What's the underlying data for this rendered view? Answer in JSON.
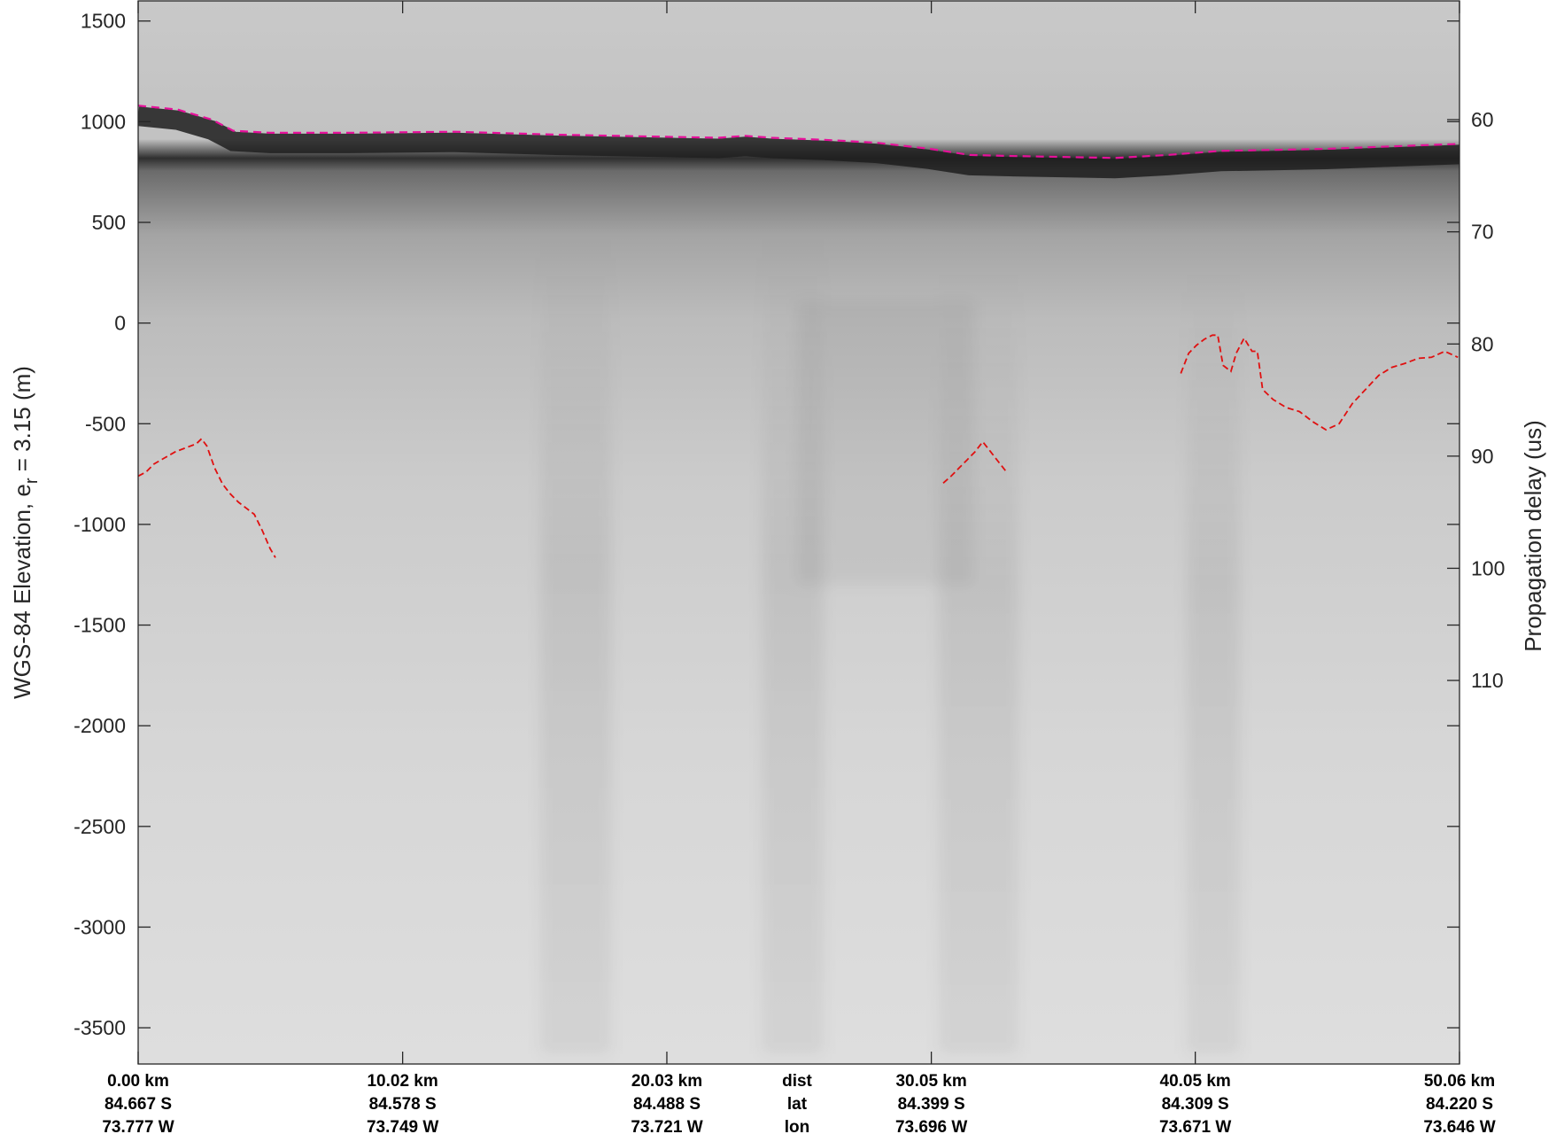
{
  "chart_data": {
    "type": "radar-echogram",
    "ylabel_left": "WGS-84 Elevation, e",
    "ylabel_left_subscript": "r",
    "ylabel_left_suffix": " = 3.15 (m)",
    "ylabel_right": "Propagation delay (us)",
    "ylim_left": [
      -3680,
      1600
    ],
    "left_ticks": [
      1500,
      1000,
      500,
      0,
      -500,
      -1000,
      -1500,
      -2000,
      -2500,
      -3000,
      -3500
    ],
    "right_ticks": [
      60,
      70,
      80,
      90,
      100,
      110
    ],
    "right_axis_map": {
      "ref_delay_us": 60,
      "ref_elevation_m": 1010,
      "m_per_us": -55.7
    },
    "xlim_km": [
      0,
      50.06
    ],
    "colors": {
      "surface_layer": "#e6109a",
      "bed_layer": "#e01010",
      "frame": "#262626"
    },
    "bottom_rows": [
      {
        "key": "dist",
        "label": "dist",
        "values": [
          "0.00 km",
          "10.02 km",
          "20.03 km",
          "30.05 km",
          "40.05 km",
          "50.06 km"
        ]
      },
      {
        "key": "lat",
        "label": "lat",
        "values": [
          "84.667 S",
          "84.578 S",
          "84.488 S",
          "84.399 S",
          "84.309 S",
          "84.220 S"
        ]
      },
      {
        "key": "lon",
        "label": "lon",
        "values": [
          "73.777 W",
          "73.749 W",
          "73.721 W",
          "73.696 W",
          "73.671 W",
          "73.646 W"
        ]
      }
    ],
    "bottom_positions_km": [
      0,
      10.02,
      20.03,
      30.05,
      40.05,
      50.06
    ],
    "surface_layer": {
      "x_km": [
        0,
        1.5,
        2.8,
        3.6,
        5,
        8,
        12,
        16,
        20,
        22,
        23,
        24,
        26,
        28,
        30,
        31.5,
        33,
        35,
        37,
        39,
        41,
        43,
        45,
        47,
        50.06
      ],
      "elevation_m": [
        1080,
        1060,
        1010,
        955,
        945,
        945,
        950,
        935,
        925,
        920,
        930,
        920,
        910,
        895,
        865,
        835,
        830,
        825,
        820,
        835,
        855,
        860,
        865,
        875,
        890
      ]
    },
    "bed_segments": [
      {
        "x_km": [
          0,
          0.3,
          0.6,
          1.0,
          1.4,
          1.8,
          2.2,
          2.4,
          2.6,
          2.9,
          3.2,
          3.5,
          3.8,
          4.1,
          4.4,
          4.7,
          5.0,
          5.2
        ],
        "elevation_m": [
          -760,
          -740,
          -700,
          -670,
          -640,
          -620,
          -600,
          -575,
          -610,
          -720,
          -800,
          -850,
          -890,
          -920,
          -950,
          -1030,
          -1120,
          -1165
        ]
      },
      {
        "x_km": [
          30.5,
          30.8,
          31.1,
          31.4,
          31.7,
          32.0,
          32.3,
          32.6,
          32.9
        ],
        "elevation_m": [
          -795,
          -760,
          -720,
          -680,
          -640,
          -590,
          -640,
          -690,
          -740
        ]
      },
      {
        "x_km": [
          39.5,
          39.8,
          40.1,
          40.4,
          40.7,
          40.9,
          41.1,
          41.4,
          41.6,
          41.9,
          42.2,
          42.4,
          42.6,
          43.0,
          43.5,
          44.0,
          44.5,
          45.0,
          45.5,
          46.0,
          46.5,
          47.0,
          47.5,
          48.0,
          48.5,
          49.0,
          49.5,
          50.0
        ],
        "elevation_m": [
          -250,
          -150,
          -110,
          -80,
          -60,
          -60,
          -210,
          -240,
          -150,
          -75,
          -140,
          -140,
          -330,
          -380,
          -420,
          -440,
          -490,
          -530,
          -500,
          -400,
          -330,
          -260,
          -220,
          -200,
          -175,
          -170,
          -140,
          -170
        ]
      }
    ]
  }
}
